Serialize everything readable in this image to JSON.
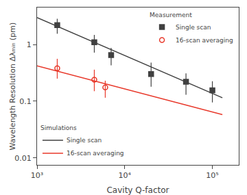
{
  "chart_data": {
    "type": "scatter",
    "xlabel": "Cavity Q-factor",
    "ylabel": "Wavelength Resolution Δλₘᵢₙ (pm)",
    "log": true,
    "grid": false,
    "xlim": [
      1000,
      200000
    ],
    "ylim": [
      0.0075,
      4.5
    ],
    "xticks": [
      {
        "value": 1000,
        "label": "10³"
      },
      {
        "value": 10000,
        "label": "10⁴"
      },
      {
        "value": 100000,
        "label": "10⁵"
      }
    ],
    "yticks": [
      0.01,
      0.1,
      1
    ],
    "series": [
      {
        "name": "Single scan",
        "type": "line",
        "color": "#404040",
        "line_style": "solid",
        "legend": "lower left",
        "legend_title": "Simulations",
        "x": [
          1000,
          130000
        ],
        "values": [
          3.0,
          0.115
        ]
      },
      {
        "name": "16-scan averaging",
        "type": "line",
        "color": "#e8382a",
        "line_style": "solid",
        "legend": "lower left",
        "legend_title": "Simulations",
        "x": [
          1000,
          130000
        ],
        "values": [
          0.42,
          0.058
        ]
      },
      {
        "name": "Single scan",
        "type": "scatter",
        "color": "#404040",
        "marker": "square",
        "legend": "upper right",
        "legend_title": "Measurement",
        "x": [
          1700,
          4500,
          7000,
          20000,
          50000,
          100000
        ],
        "values": [
          2.2,
          1.1,
          0.65,
          0.3,
          0.22,
          0.155
        ],
        "yerr_lo": [
          0.65,
          0.38,
          0.22,
          0.12,
          0.09,
          0.06
        ],
        "yerr_hi": [
          0.65,
          0.38,
          0.22,
          0.18,
          0.09,
          0.07
        ]
      },
      {
        "name": "16-scan averaging",
        "type": "scatter",
        "color": "#e8382a",
        "marker": "circle-open",
        "legend": "upper right",
        "legend_title": "Measurement",
        "x": [
          1700,
          4500,
          6000
        ],
        "values": [
          0.38,
          0.24,
          0.175
        ],
        "yerr_lo": [
          0.13,
          0.09,
          0.06
        ],
        "yerr_hi": [
          0.18,
          0.12,
          0.055
        ]
      }
    ]
  }
}
